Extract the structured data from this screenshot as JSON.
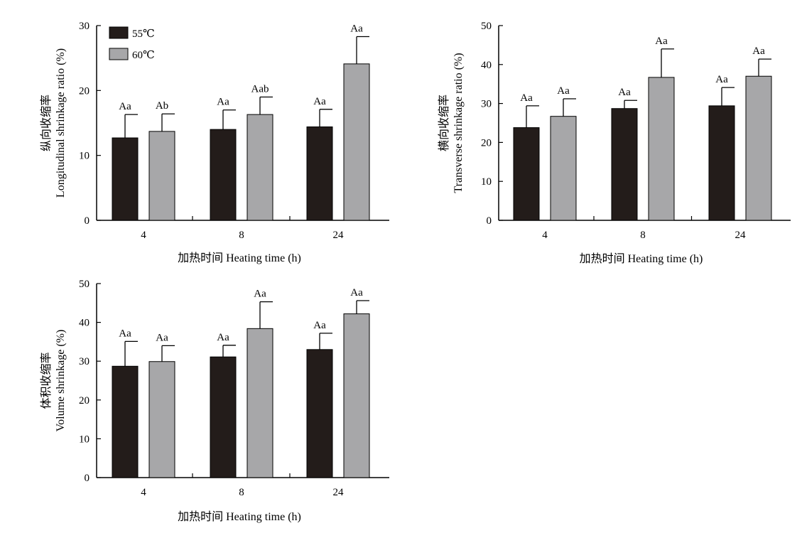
{
  "colors": {
    "series_55": "#231c1a",
    "series_60": "#a7a7a9",
    "axis": "#000000"
  },
  "chart_data": [
    {
      "type": "bar",
      "categories": [
        "4",
        "8",
        "24"
      ],
      "xlabel": "加热时间 Heating time (h)",
      "ylabel_cn": "纵向收缩率",
      "ylabel_en": "Longitudinal shrinkage ratio (%)",
      "ylim": [
        0,
        30
      ],
      "yticks": [
        0,
        10,
        20,
        30
      ],
      "legend": {
        "show": true,
        "position": "top-left"
      },
      "series": [
        {
          "name": "55℃",
          "values": [
            12.7,
            14.0,
            14.4
          ],
          "errors": [
            3.6,
            3.0,
            2.7
          ],
          "labels": [
            "Aa",
            "Aa",
            "Aa"
          ]
        },
        {
          "name": "60℃",
          "values": [
            13.7,
            16.3,
            24.1
          ],
          "errors": [
            2.7,
            2.7,
            4.2
          ],
          "labels": [
            "Ab",
            "Aab",
            "Aa"
          ]
        }
      ]
    },
    {
      "type": "bar",
      "categories": [
        "4",
        "8",
        "24"
      ],
      "xlabel": "加热时间 Heating time (h)",
      "ylabel_cn": "横向收缩率",
      "ylabel_en": "Transverse shrinkage ratio (%)",
      "ylim": [
        0,
        50
      ],
      "yticks": [
        0,
        10,
        20,
        30,
        40,
        50
      ],
      "legend": {
        "show": false
      },
      "series": [
        {
          "name": "55℃",
          "values": [
            23.8,
            28.7,
            29.4
          ],
          "errors": [
            5.6,
            2.1,
            4.7
          ],
          "labels": [
            "Aa",
            "Aa",
            "Aa"
          ]
        },
        {
          "name": "60℃",
          "values": [
            26.7,
            36.7,
            37.0
          ],
          "errors": [
            4.5,
            7.3,
            4.4
          ],
          "labels": [
            "Aa",
            "Aa",
            "Aa"
          ]
        }
      ]
    },
    {
      "type": "bar",
      "categories": [
        "4",
        "8",
        "24"
      ],
      "xlabel": "加热时间 Heating time (h)",
      "ylabel_cn": "体积收缩率",
      "ylabel_en": "Volume shrinkage (%)",
      "ylim": [
        0,
        50
      ],
      "yticks": [
        0,
        10,
        20,
        30,
        40,
        50
      ],
      "legend": {
        "show": false
      },
      "series": [
        {
          "name": "55℃",
          "values": [
            28.7,
            31.1,
            33.0
          ],
          "errors": [
            6.4,
            3.0,
            4.2
          ],
          "labels": [
            "Aa",
            "Aa",
            "Aa"
          ]
        },
        {
          "name": "60℃",
          "values": [
            29.9,
            38.4,
            42.2
          ],
          "errors": [
            4.1,
            6.9,
            3.4
          ],
          "labels": [
            "Aa",
            "Aa",
            "Aa"
          ]
        }
      ]
    }
  ]
}
